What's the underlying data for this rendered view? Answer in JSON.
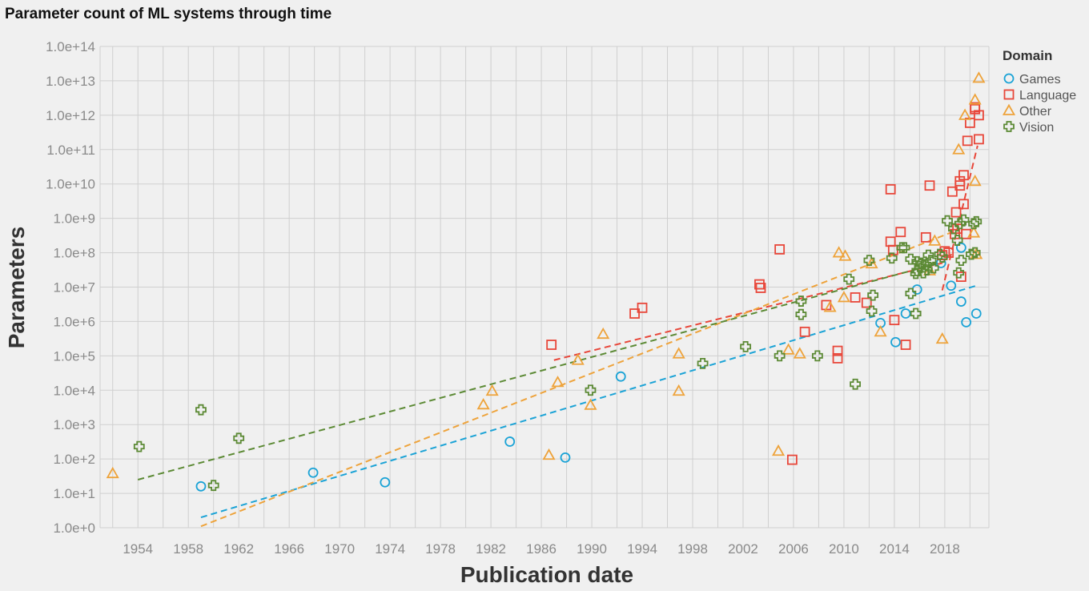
{
  "chart_data": {
    "type": "scatter",
    "title": "Parameter count of ML systems through time",
    "xlabel": "Publication date",
    "ylabel": "Parameters",
    "xlim": [
      1951,
      2021.5
    ],
    "ylim_log10": [
      0,
      14
    ],
    "y_scale": "log",
    "x_ticks": [
      1954,
      1958,
      1962,
      1966,
      1970,
      1974,
      1978,
      1982,
      1986,
      1990,
      1994,
      1998,
      2002,
      2006,
      2010,
      2014,
      2018
    ],
    "x_tick_labels": [
      "1954",
      "1958",
      "1962",
      "1966",
      "1970",
      "1974",
      "1978",
      "1982",
      "1986",
      "1990",
      "1994",
      "1998",
      "2002",
      "2006",
      "2010",
      "2014",
      "2018"
    ],
    "y_ticks": [
      0,
      1,
      2,
      3,
      4,
      5,
      6,
      7,
      8,
      9,
      10,
      11,
      12,
      13,
      14
    ],
    "y_tick_labels": [
      "1.0e+0",
      "1.0e+1",
      "1.0e+2",
      "1.0e+3",
      "1.0e+4",
      "1.0e+5",
      "1.0e+6",
      "1.0e+7",
      "1.0e+8",
      "1.0e+9",
      "1.0e+10",
      "1.0e+11",
      "1.0e+12",
      "1.0e+13",
      "1.0e+14"
    ],
    "grid": true,
    "legend": {
      "title": "Domain",
      "placement": "top-right"
    },
    "series": [
      {
        "name": "Games",
        "marker": "circle",
        "color": "#1ba3d6",
        "points": [
          [
            1959.0,
            16
          ],
          [
            1967.9,
            40
          ],
          [
            1973.6,
            21
          ],
          [
            1983.5,
            320
          ],
          [
            1987.9,
            110
          ],
          [
            1992.3,
            25000
          ],
          [
            2012.9,
            900000
          ],
          [
            2014.1,
            250000
          ],
          [
            2014.9,
            1700000
          ],
          [
            2015.8,
            8500000
          ],
          [
            2017.7,
            50000000
          ],
          [
            2018.5,
            11000000
          ],
          [
            2019.3,
            3800000
          ],
          [
            2019.3,
            140000000
          ],
          [
            2019.7,
            950000
          ],
          [
            2020.5,
            1700000
          ]
        ],
        "trend": [
          [
            1959,
            2
          ],
          [
            2020.5,
            11000000
          ]
        ]
      },
      {
        "name": "Language",
        "marker": "square",
        "color": "#e8473a",
        "points": [
          [
            1986.8,
            210000
          ],
          [
            1993.4,
            1700000
          ],
          [
            1994.0,
            2500000
          ],
          [
            2003.3,
            12000000
          ],
          [
            2003.4,
            9500000
          ],
          [
            2004.9,
            125000000
          ],
          [
            2005.9,
            95
          ],
          [
            2006.9,
            500000
          ],
          [
            2008.6,
            3000000
          ],
          [
            2009.5,
            140000
          ],
          [
            2009.5,
            85000
          ],
          [
            2010.9,
            5000000
          ],
          [
            2011.8,
            3500000
          ],
          [
            2013.7,
            7000000000
          ],
          [
            2013.7,
            210000000
          ],
          [
            2013.9,
            120000000
          ],
          [
            2014.0,
            1100000
          ],
          [
            2014.5,
            400000000
          ],
          [
            2014.9,
            210000
          ],
          [
            2016.5,
            280000000
          ],
          [
            2016.8,
            9000000000
          ],
          [
            2017.8,
            85000000
          ],
          [
            2018.0,
            110000000
          ],
          [
            2018.3,
            100000000
          ],
          [
            2018.6,
            6000000000
          ],
          [
            2018.8,
            350000000
          ],
          [
            2018.9,
            1500000000
          ],
          [
            2019.0,
            500000000
          ],
          [
            2019.2,
            9000000000
          ],
          [
            2019.2,
            12000000000
          ],
          [
            2019.3,
            20000000
          ],
          [
            2019.5,
            2600000000
          ],
          [
            2019.5,
            18000000000
          ],
          [
            2019.7,
            350000000
          ],
          [
            2019.8,
            180000000000
          ],
          [
            2020.0,
            600000000000
          ],
          [
            2020.4,
            1500000000000
          ],
          [
            2020.4,
            1700000000000
          ],
          [
            2020.7,
            200000000000
          ],
          [
            2020.7,
            1000000000000
          ]
        ],
        "trend": [
          [
            1987,
            75000
          ],
          [
            2017.8,
            50000000
          ]
        ],
        "trend2": [
          [
            2017.8,
            8000000
          ],
          [
            2020.6,
            130000000000
          ]
        ]
      },
      {
        "name": "Other",
        "marker": "triangle",
        "color": "#eea33b",
        "points": [
          [
            1952.0,
            38
          ],
          [
            1981.4,
            3800
          ],
          [
            1982.1,
            9500
          ],
          [
            1986.6,
            130
          ],
          [
            1987.3,
            17000
          ],
          [
            1988.9,
            75000
          ],
          [
            1989.9,
            3700
          ],
          [
            1990.9,
            430000
          ],
          [
            1996.9,
            9500
          ],
          [
            1996.9,
            115000
          ],
          [
            2004.8,
            170
          ],
          [
            2005.6,
            150000
          ],
          [
            2006.5,
            115000
          ],
          [
            2008.9,
            2600000
          ],
          [
            2009.6,
            100000000
          ],
          [
            2010.0,
            5000000
          ],
          [
            2010.1,
            80000000
          ],
          [
            2012.2,
            48000000
          ],
          [
            2012.9,
            500000
          ],
          [
            2016.8,
            30000000
          ],
          [
            2017.2,
            220000000
          ],
          [
            2017.8,
            310000
          ],
          [
            2019.1,
            100000000000
          ],
          [
            2019.6,
            1000000000000
          ],
          [
            2020.3,
            380000000
          ],
          [
            2020.4,
            12000000000
          ],
          [
            2020.4,
            2800000000000
          ],
          [
            2020.7,
            12000000000000
          ],
          [
            2020.5,
            90000000
          ]
        ],
        "trend": [
          [
            1959,
            1.1
          ],
          [
            2018.6,
            400000000
          ]
        ]
      },
      {
        "name": "Vision",
        "marker": "plus",
        "color": "#5c8a35",
        "points": [
          [
            1954.1,
            230
          ],
          [
            1959.0,
            2700
          ],
          [
            1960.0,
            17
          ],
          [
            1962.0,
            400
          ],
          [
            1989.9,
            10000
          ],
          [
            1998.8,
            60000
          ],
          [
            2002.2,
            185000
          ],
          [
            2004.9,
            100000
          ],
          [
            2006.6,
            3900000
          ],
          [
            2006.6,
            1600000
          ],
          [
            2007.9,
            100000
          ],
          [
            2010.4,
            17000000
          ],
          [
            2010.9,
            15000
          ],
          [
            2012.0,
            60000000
          ],
          [
            2012.2,
            2000000
          ],
          [
            2012.3,
            5800000
          ],
          [
            2013.8,
            70000000
          ],
          [
            2014.6,
            140000000
          ],
          [
            2014.8,
            140000000
          ],
          [
            2015.3,
            65000000
          ],
          [
            2015.3,
            6500000
          ],
          [
            2015.7,
            1700000
          ],
          [
            2015.7,
            25000000
          ],
          [
            2015.8,
            55000000
          ],
          [
            2015.8,
            30000000
          ],
          [
            2016.0,
            40000000
          ],
          [
            2016.1,
            50000000
          ],
          [
            2016.3,
            26000000
          ],
          [
            2016.5,
            45000000
          ],
          [
            2016.6,
            32000000
          ],
          [
            2016.7,
            85000000
          ],
          [
            2016.9,
            60000000
          ],
          [
            2017.1,
            36000000
          ],
          [
            2017.6,
            90000000
          ],
          [
            2017.8,
            75000000
          ],
          [
            2018.2,
            850000000
          ],
          [
            2018.7,
            500000000
          ],
          [
            2019.0,
            230000000
          ],
          [
            2019.1,
            26000000
          ],
          [
            2019.2,
            700000000
          ],
          [
            2019.3,
            60000000
          ],
          [
            2019.5,
            900000000
          ],
          [
            2020.1,
            90000000
          ],
          [
            2020.3,
            700000000
          ],
          [
            2020.4,
            100000000
          ],
          [
            2020.5,
            800000000
          ]
        ],
        "trend": [
          [
            1954,
            25
          ],
          [
            2018.0,
            55000000
          ]
        ]
      }
    ]
  }
}
